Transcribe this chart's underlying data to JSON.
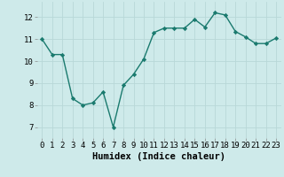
{
  "x": [
    0,
    1,
    2,
    3,
    4,
    5,
    6,
    7,
    8,
    9,
    10,
    11,
    12,
    13,
    14,
    15,
    16,
    17,
    18,
    19,
    20,
    21,
    22,
    23
  ],
  "y": [
    11.0,
    10.3,
    10.3,
    8.3,
    8.0,
    8.1,
    8.6,
    7.0,
    8.9,
    9.4,
    10.1,
    11.3,
    11.5,
    11.5,
    11.5,
    11.9,
    11.55,
    12.2,
    12.1,
    11.35,
    11.1,
    10.8,
    10.8,
    11.05
  ],
  "line_color": "#1a7a6e",
  "marker": "D",
  "marker_size": 2.2,
  "linewidth": 1.0,
  "xlabel": "Humidex (Indice chaleur)",
  "xlim": [
    -0.5,
    23.5
  ],
  "ylim": [
    6.5,
    12.7
  ],
  "yticks": [
    7,
    8,
    9,
    10,
    11,
    12
  ],
  "xtick_labels": [
    "0",
    "1",
    "2",
    "3",
    "4",
    "5",
    "6",
    "7",
    "8",
    "9",
    "10",
    "11",
    "12",
    "13",
    "14",
    "15",
    "16",
    "17",
    "18",
    "19",
    "20",
    "21",
    "22",
    "23"
  ],
  "bg_color": "#ceeaea",
  "grid_color": "#b8d8d8",
  "font_family": "monospace",
  "xlabel_fontsize": 7.5,
  "tick_fontsize": 6.5
}
